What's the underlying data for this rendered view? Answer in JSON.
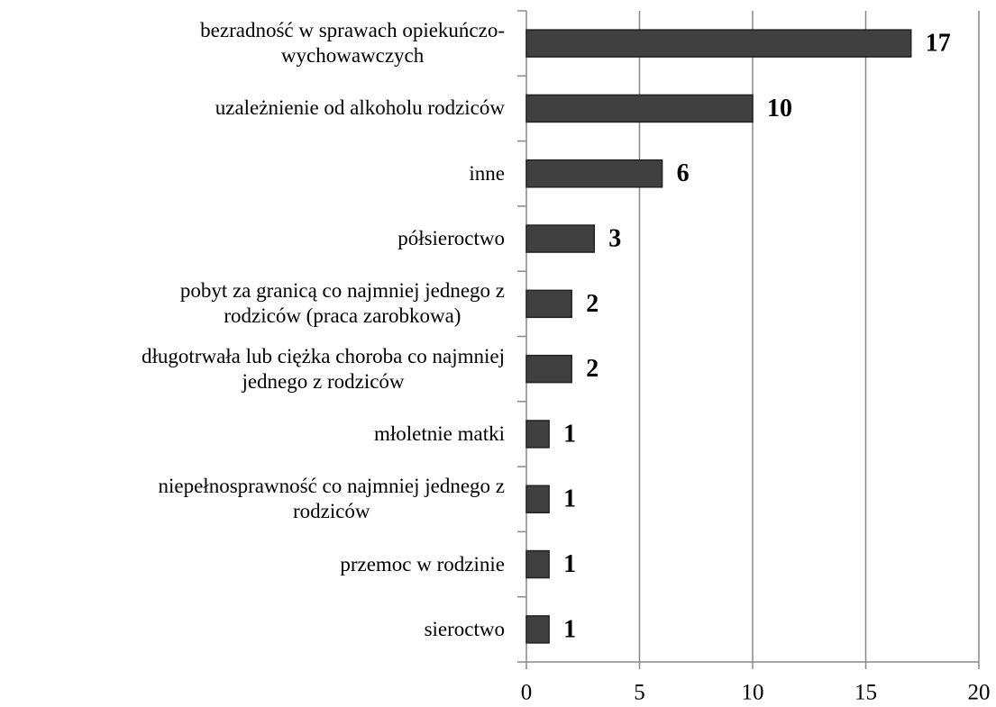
{
  "chart_data": {
    "type": "barh",
    "categories": [
      "bezradność w sprawach opiekuńczo-\nwychowawczych",
      "uzależnienie od alkoholu rodziców",
      "inne",
      "półsieroctwo",
      "pobyt za granicą co najmniej jednego z\nrodziców (praca zarobkowa)",
      "długotrwała lub ciężka choroba co najmniej\njednego z rodziców",
      "młoletnie matki",
      "niepełnosprawność co najmniej jednego z\nrodziców",
      "przemoc w rodzinie",
      "sieroctwo"
    ],
    "values": [
      17,
      10,
      6,
      3,
      2,
      2,
      1,
      1,
      1,
      1
    ],
    "color": "#404040",
    "xlim": [
      0,
      20
    ],
    "xticks": [
      0,
      5,
      10,
      15,
      20
    ],
    "grid": true
  }
}
